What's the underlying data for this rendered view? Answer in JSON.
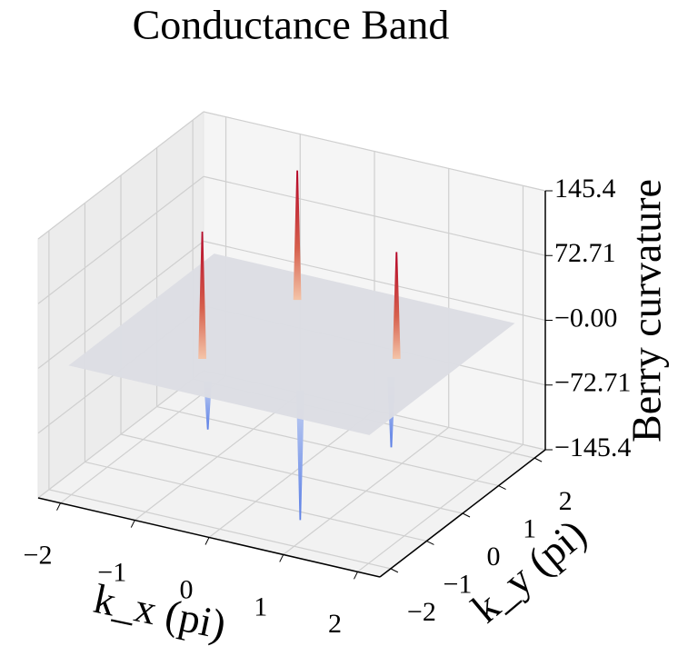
{
  "chart_data": {
    "type": "surface3d",
    "title": "Conductance Band",
    "xlabel": "k_x (pi)",
    "ylabel": "k_y (pi)",
    "zlabel": "Berry curvature",
    "xlim": [
      -2.3,
      2.3
    ],
    "ylim": [
      -2.3,
      2.3
    ],
    "zlim": [
      -145.42,
      145.42
    ],
    "xticks": [
      {
        "value": -2,
        "label": "−2"
      },
      {
        "value": -1,
        "label": "−1"
      },
      0,
      1,
      2
    ],
    "yticks": [
      {
        "value": -2,
        "label": "−2"
      },
      {
        "value": -1,
        "label": "−1"
      },
      0,
      1,
      2
    ],
    "zticks": [
      {
        "value": -145.42,
        "label": "−145.4"
      },
      {
        "value": -72.71,
        "label": "−72.71"
      },
      {
        "value": 0,
        "label": "−0.00"
      },
      {
        "value": 72.71,
        "label": "72.71"
      },
      {
        "value": 145.42,
        "label": "145.4"
      }
    ],
    "x": [
      -0.73,
      -0.54,
      1.28,
      -0.37,
      0.71,
      1.47
    ],
    "y": [
      -0.98,
      1.27,
      0.27,
      -1.57,
      -1.23,
      -0.27
    ],
    "z": [
      143,
      145.42,
      120,
      -54,
      -145.42,
      -79
    ],
    "colormap": [
      "#3b4cc0",
      "#dcdde3",
      "#b40426"
    ],
    "grid": true
  }
}
